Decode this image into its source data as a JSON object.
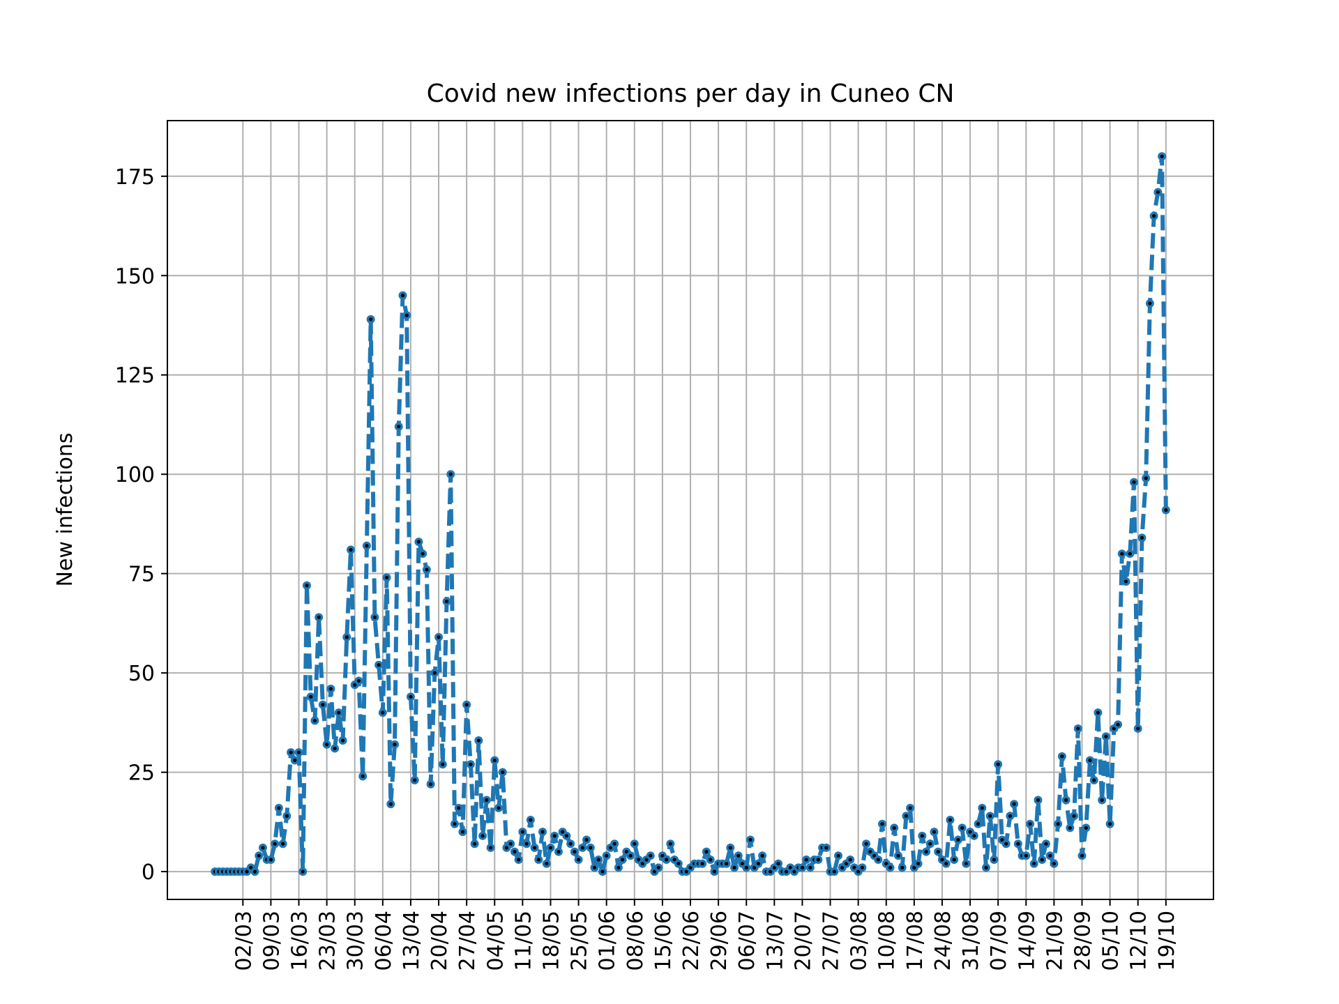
{
  "chart_data": {
    "type": "line",
    "title": "Covid new infections per day in Cuneo CN",
    "xlabel": "",
    "ylabel": "New infections",
    "ylim": [
      -7,
      189
    ],
    "yticks": [
      0,
      25,
      50,
      75,
      100,
      125,
      150,
      175
    ],
    "grid": true,
    "x_start_date": "2020-02-24",
    "xticks": [
      "02/03",
      "09/03",
      "16/03",
      "23/03",
      "30/03",
      "06/04",
      "13/04",
      "20/04",
      "27/04",
      "04/05",
      "11/05",
      "18/05",
      "25/05",
      "01/06",
      "08/06",
      "15/06",
      "22/06",
      "29/06",
      "06/07",
      "13/07",
      "20/07",
      "27/07",
      "03/08",
      "10/08",
      "17/08",
      "24/08",
      "31/08",
      "07/09",
      "14/09",
      "21/09",
      "28/09",
      "05/10",
      "12/10",
      "19/10"
    ],
    "series": [
      {
        "name": "",
        "color": "#1f77b4",
        "marker_color": "#000000",
        "line_style": "dashed",
        "values": [
          0,
          0,
          0,
          0,
          0,
          0,
          0,
          0,
          0,
          1,
          0,
          4,
          6,
          3,
          3,
          7,
          16,
          7,
          14,
          30,
          28,
          30,
          0,
          72,
          44,
          38,
          64,
          42,
          32,
          46,
          31,
          40,
          33,
          59,
          81,
          47,
          48,
          24,
          82,
          139,
          64,
          52,
          40,
          74,
          17,
          32,
          112,
          145,
          140,
          44,
          23,
          83,
          80,
          76,
          22,
          50,
          59,
          27,
          68,
          100,
          12,
          16,
          10,
          42,
          27,
          7,
          33,
          9,
          18,
          6,
          28,
          16,
          25,
          6,
          7,
          5,
          3,
          10,
          7,
          13,
          6,
          3,
          10,
          2,
          6,
          9,
          5,
          10,
          9,
          7,
          5,
          3,
          6,
          8,
          6,
          1,
          3,
          0,
          4,
          6,
          7,
          1,
          3,
          5,
          4,
          7,
          3,
          2,
          3,
          4,
          0,
          1,
          4,
          3,
          7,
          3,
          2,
          0,
          0,
          1,
          2,
          2,
          2,
          5,
          3,
          0,
          2,
          2,
          2,
          6,
          1,
          4,
          2,
          1,
          8,
          1,
          2,
          4,
          0,
          0,
          1,
          2,
          0,
          0,
          1,
          0,
          1,
          1,
          3,
          1,
          3,
          3,
          6,
          6,
          0,
          0,
          4,
          1,
          2,
          3,
          1,
          0,
          1,
          7,
          5,
          4,
          3,
          12,
          2,
          1,
          11,
          4,
          1,
          14,
          16,
          1,
          2,
          9,
          5,
          7,
          10,
          5,
          3,
          2,
          13,
          3,
          8,
          11,
          2,
          10,
          9,
          12,
          16,
          1,
          14,
          3,
          27,
          8,
          7,
          14,
          17,
          7,
          4,
          4,
          12,
          2,
          18,
          3,
          7,
          4,
          2,
          12,
          29,
          18,
          11,
          14,
          36,
          4,
          11,
          28,
          23,
          40,
          18,
          34,
          12,
          36,
          37,
          80,
          73,
          80,
          98,
          36,
          84,
          99,
          143,
          165,
          171,
          180,
          91
        ]
      }
    ]
  }
}
